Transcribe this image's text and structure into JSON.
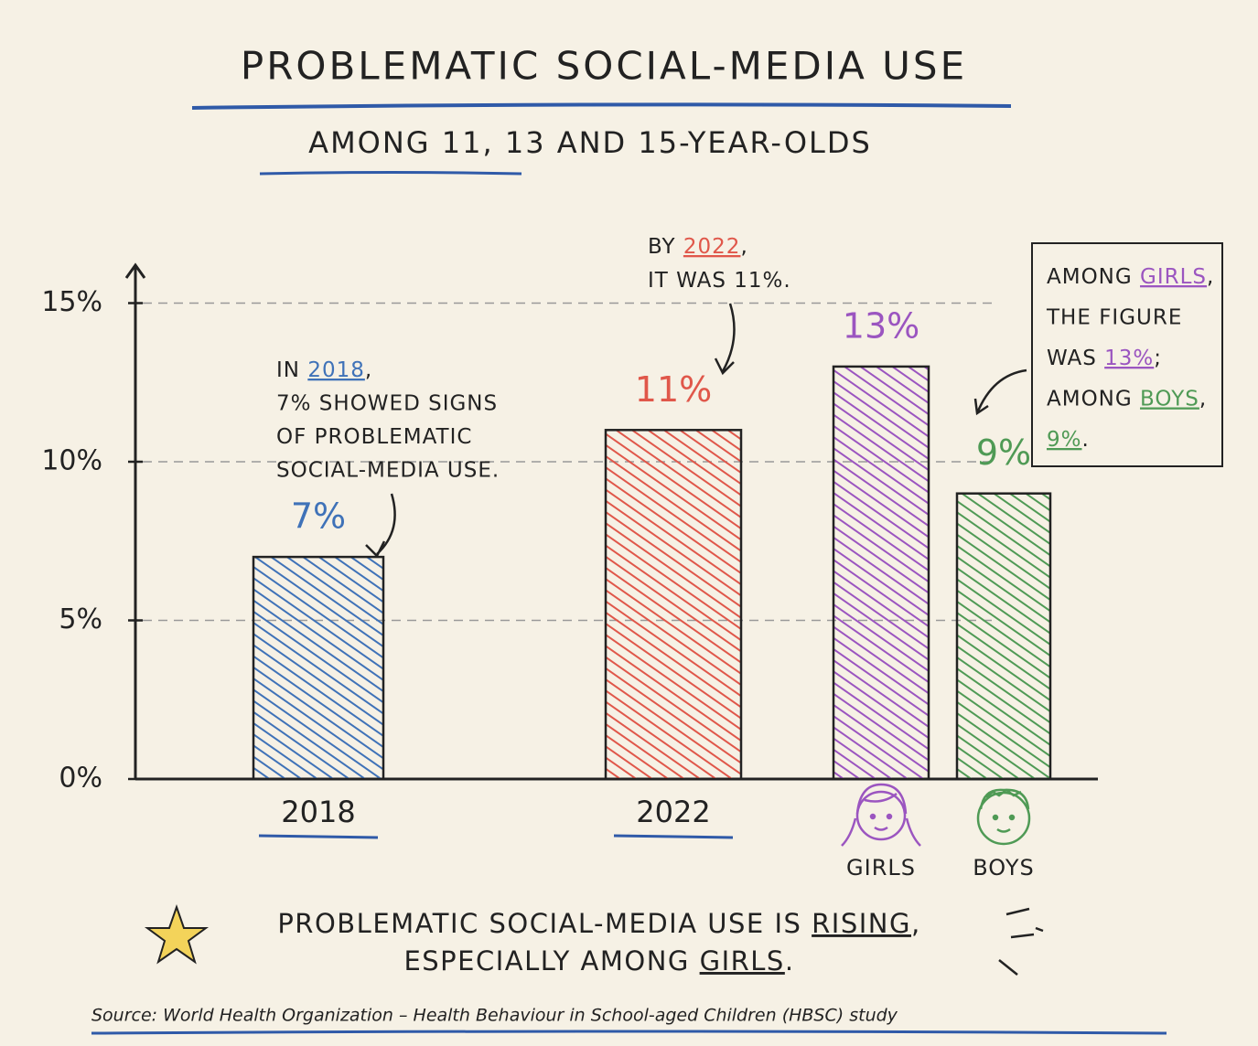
{
  "chart_data": {
    "type": "bar",
    "title": "PROBLEMATIC SOCIAL-MEDIA USE",
    "subtitle": "AMONG 11, 13 AND 15-YEAR-OLDS",
    "categories": [
      "2018",
      "2022",
      "GIRLS",
      "BOYS"
    ],
    "values": [
      7,
      11,
      13,
      9
    ],
    "value_labels": [
      "7%",
      "11%",
      "13%",
      "9%"
    ],
    "colors": [
      "#3f72b8",
      "#e0574a",
      "#9b55c0",
      "#4f9a55"
    ],
    "ylim": [
      0,
      16
    ],
    "yticks": [
      {
        "value": 0,
        "label": "0%"
      },
      {
        "value": 5,
        "label": "5%"
      },
      {
        "value": 10,
        "label": "10%"
      },
      {
        "value": 15,
        "label": "15%"
      }
    ],
    "grid": true,
    "annotations": [
      {
        "lines": [
          [
            "IN ",
            "2018",
            ","
          ],
          [
            "7% SHOWED SIGNS"
          ],
          [
            "OF PROBLEMATIC"
          ],
          [
            "SOCIAL-MEDIA USE."
          ]
        ]
      },
      {
        "lines": [
          [
            "BY ",
            "2022",
            ","
          ],
          [
            "IT WAS 11%."
          ]
        ]
      },
      {
        "lines": [
          [
            "AMONG ",
            "GIRLS",
            ","
          ],
          [
            "THE FIGURE"
          ],
          [
            "WAS ",
            "13%",
            ";"
          ],
          [
            "AMONG ",
            "BOYS",
            ","
          ],
          [
            "9%",
            "."
          ]
        ]
      }
    ],
    "takeaway": [
      [
        "PROBLEMATIC SOCIAL-MEDIA USE IS ",
        "RISING",
        ","
      ],
      [
        "ESPECIALLY AMONG ",
        "GIRLS",
        "."
      ]
    ],
    "source": "Source: World Health Organization – Health Behaviour in School-aged Children (HBSC) study"
  }
}
